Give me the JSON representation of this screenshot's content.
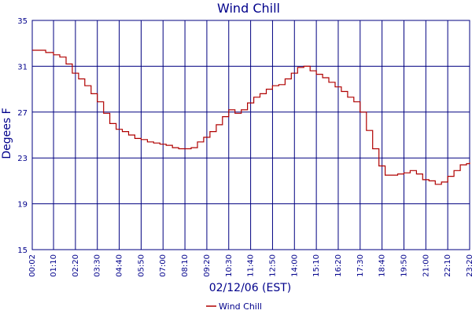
{
  "chart_data": {
    "type": "line",
    "title": "Wind Chill",
    "xlabel": "02/12/06 (EST)",
    "ylabel": "Degees F",
    "ylim": [
      15,
      35
    ],
    "yticks": [
      15,
      19,
      23,
      27,
      31,
      35
    ],
    "xlim": [
      "00:02",
      "23:20"
    ],
    "xticks": [
      "00:02",
      "01:10",
      "02:20",
      "03:30",
      "04:40",
      "05:50",
      "07:00",
      "08:10",
      "09:20",
      "10:30",
      "11:40",
      "12:50",
      "14:00",
      "15:10",
      "16:20",
      "17:30",
      "18:40",
      "19:50",
      "21:00",
      "22:10",
      "23:20"
    ],
    "grid": true,
    "legend": "bottom",
    "colors": {
      "line": "#b00000",
      "grid": "#000080",
      "text": "#00008b"
    },
    "series": [
      {
        "name": "Wind Chill",
        "x": [
          "00:02",
          "00:30",
          "00:45",
          "01:10",
          "01:30",
          "01:50",
          "02:10",
          "02:30",
          "02:50",
          "03:10",
          "03:30",
          "03:50",
          "04:10",
          "04:30",
          "04:50",
          "05:10",
          "05:30",
          "05:50",
          "06:10",
          "06:30",
          "06:50",
          "07:10",
          "07:30",
          "07:50",
          "08:10",
          "08:30",
          "08:50",
          "09:10",
          "09:30",
          "09:50",
          "10:10",
          "10:30",
          "10:50",
          "11:10",
          "11:30",
          "11:50",
          "12:10",
          "12:30",
          "12:50",
          "13:10",
          "13:30",
          "13:50",
          "14:10",
          "14:30",
          "14:50",
          "15:10",
          "15:30",
          "15:50",
          "16:10",
          "16:30",
          "16:50",
          "17:10",
          "17:30",
          "17:50",
          "18:10",
          "18:30",
          "18:50",
          "19:10",
          "19:30",
          "19:50",
          "20:10",
          "20:30",
          "20:50",
          "21:10",
          "21:30",
          "21:50",
          "22:10",
          "22:30",
          "22:50",
          "23:10",
          "23:20"
        ],
        "values": [
          32.4,
          32.4,
          32.2,
          32.0,
          31.8,
          31.2,
          30.4,
          29.9,
          29.3,
          28.6,
          27.9,
          26.9,
          26.0,
          25.5,
          25.3,
          25.0,
          24.7,
          24.6,
          24.4,
          24.3,
          24.2,
          24.1,
          23.9,
          23.8,
          23.8,
          23.9,
          24.4,
          24.8,
          25.3,
          25.9,
          26.6,
          27.2,
          26.9,
          27.2,
          27.8,
          28.3,
          28.6,
          29.0,
          29.3,
          29.4,
          29.9,
          30.4,
          30.9,
          31.0,
          30.6,
          30.3,
          30.0,
          29.6,
          29.2,
          28.8,
          28.3,
          27.9,
          27.0,
          25.4,
          23.8,
          22.3,
          21.5,
          21.5,
          21.6,
          21.7,
          21.9,
          21.6,
          21.1,
          21.0,
          20.7,
          20.9,
          21.4,
          21.9,
          22.4,
          22.5,
          22.6
        ]
      }
    ]
  }
}
